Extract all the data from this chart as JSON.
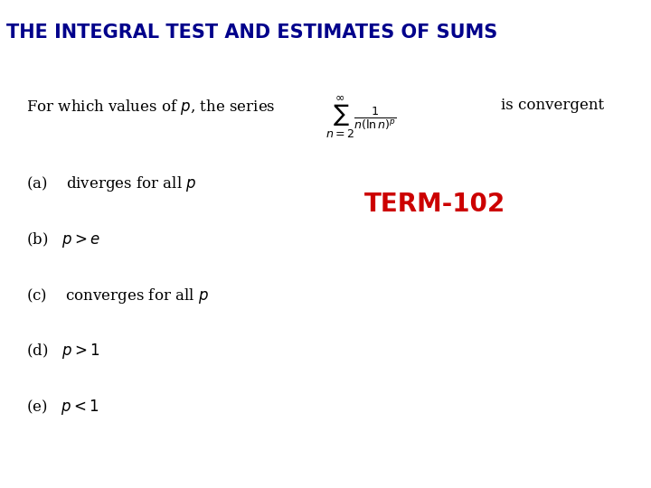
{
  "title": "THE INTEGRAL TEST AND ESTIMATES OF SUMS",
  "title_bg_color": "#add8e6",
  "title_text_color": "#00008B",
  "title_fontsize": 15,
  "term_label": "TERM-102",
  "term_color": "#cc0000",
  "term_fontsize": 20,
  "body_bg_color": "#ffffff",
  "question_part1": "For which values of $p$, the series",
  "question_sum": "$\\sum_{n=2}^{\\infty} \\frac{1}{n(\\ln n)^p}$",
  "question_part2": "is convergent",
  "options": [
    "(a)    diverges for all $p$",
    "(b)   $p > e$",
    "(c)    converges for all $p$",
    "(d)   $p > 1$",
    "(e)   $p < 1$"
  ],
  "fig_width": 7.2,
  "fig_height": 5.4,
  "dpi": 100
}
